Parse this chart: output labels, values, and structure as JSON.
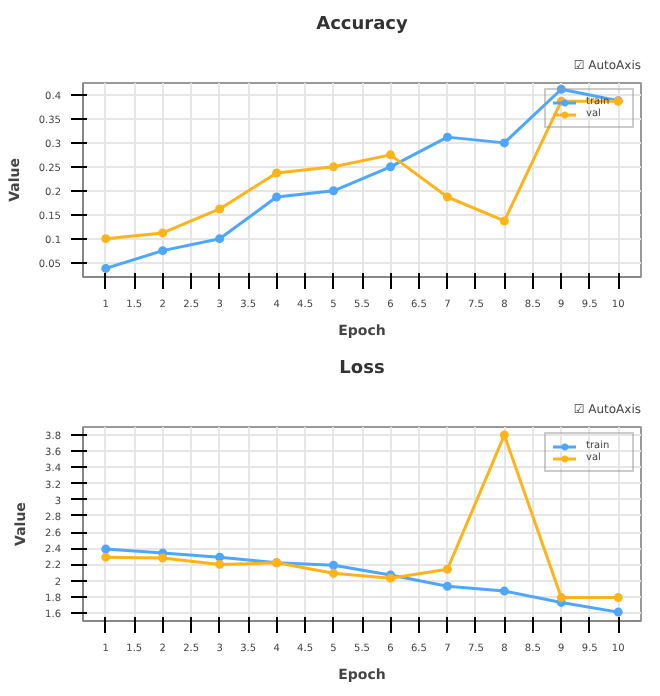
{
  "chart_data": [
    {
      "type": "line",
      "title": "Accuracy",
      "xlabel": "Epoch",
      "ylabel": "Value",
      "annotations": [
        "☑ AutoAxis"
      ],
      "x": [
        1,
        2,
        3,
        4,
        5,
        6,
        7,
        8,
        9,
        10
      ],
      "series": [
        {
          "name": "train",
          "color": "#4da6ff",
          "values": [
            0.038,
            0.075,
            0.1,
            0.187,
            0.2,
            0.25,
            0.312,
            0.3,
            0.412,
            0.388
          ]
        },
        {
          "name": "val",
          "color": "#ffb31a",
          "values": [
            0.1,
            0.112,
            0.162,
            0.237,
            0.25,
            0.275,
            0.187,
            0.137,
            0.387,
            0.387
          ]
        }
      ],
      "xlim": [
        0.6,
        10.4
      ],
      "xticks": [
        1,
        1.5,
        2,
        2.5,
        3,
        3.5,
        4,
        4.5,
        5,
        5.5,
        6,
        6.5,
        7,
        7.5,
        8,
        8.5,
        9,
        9.5,
        10
      ],
      "ylim": [
        0.02,
        0.425
      ],
      "yticks": [
        0.05,
        0.1,
        0.15,
        0.2,
        0.25,
        0.3,
        0.35,
        0.4
      ],
      "grid": true,
      "legend": "top right",
      "marker": "circle",
      "line_style": "solid"
    },
    {
      "type": "line",
      "title": "Loss",
      "xlabel": "Epoch",
      "ylabel": "Value",
      "annotations": [
        "☑ AutoAxis"
      ],
      "x": [
        1,
        2,
        3,
        4,
        5,
        6,
        7,
        8,
        9,
        10
      ],
      "series": [
        {
          "name": "train",
          "color": "#4da6ff",
          "values": [
            2.39,
            2.34,
            2.29,
            2.22,
            2.19,
            2.07,
            1.93,
            1.87,
            1.73,
            1.61
          ]
        },
        {
          "name": "val",
          "color": "#ffb31a",
          "values": [
            2.29,
            2.28,
            2.2,
            2.22,
            2.09,
            2.03,
            2.14,
            3.8,
            1.79,
            1.79
          ]
        }
      ],
      "xlim": [
        0.6,
        10.4
      ],
      "xticks": [
        1,
        1.5,
        2,
        2.5,
        3,
        3.5,
        4,
        4.5,
        5,
        5.5,
        6,
        6.5,
        7,
        7.5,
        8,
        8.5,
        9,
        9.5,
        10
      ],
      "ylim": [
        1.5,
        3.9
      ],
      "yticks": [
        1.6,
        1.8,
        2,
        2.2,
        2.4,
        2.6,
        2.8,
        3,
        3.2,
        3.4,
        3.6,
        3.8
      ],
      "grid": true,
      "legend": "top right",
      "marker": "circle",
      "line_style": "solid"
    }
  ]
}
